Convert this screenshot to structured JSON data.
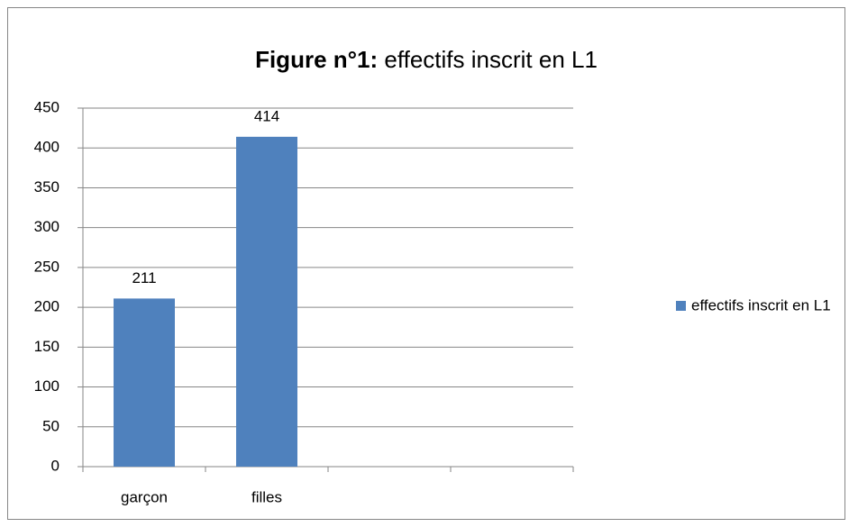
{
  "chart_data": {
    "type": "bar",
    "title": [
      "Figure n°1:",
      "effectifs inscrit en L1"
    ],
    "categories": [
      "garçon",
      "filles",
      null,
      null
    ],
    "series": [
      {
        "name": "effectifs inscrit en L1",
        "color": "#4f81bd",
        "values": [
          211,
          414,
          null,
          null
        ]
      }
    ],
    "ylim": [
      0,
      450
    ],
    "yticks": [
      0,
      50,
      100,
      150,
      200,
      250,
      300,
      350,
      400,
      450
    ],
    "grid": true,
    "legend": "right"
  }
}
